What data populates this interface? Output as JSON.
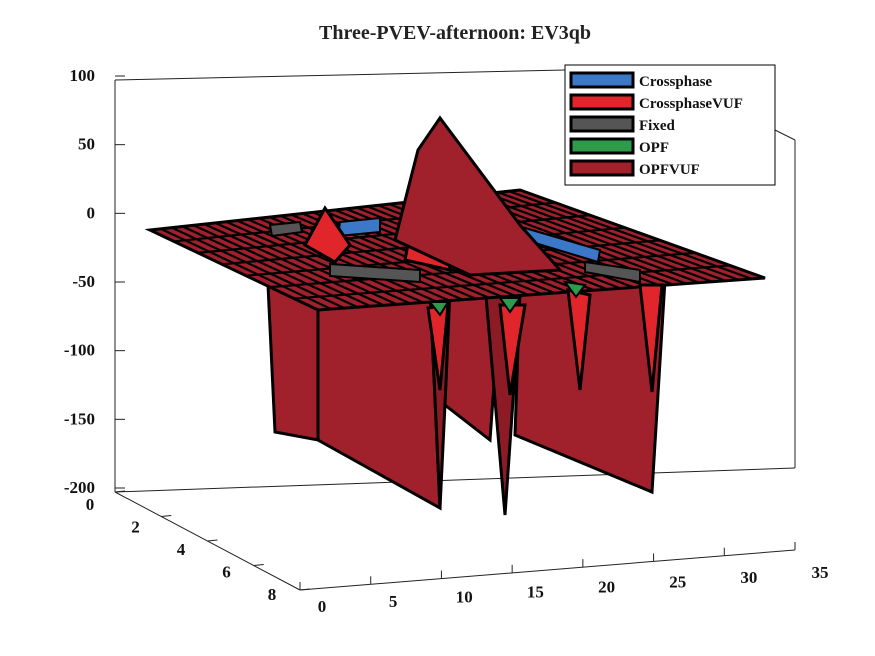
{
  "chart_data": {
    "type": "surface3d",
    "title": "Three-PVEV-afternoon: EV3qb",
    "xlabel": "",
    "ylabel": "",
    "zlabel": "",
    "x_ticks": [
      "0",
      "5",
      "10",
      "15",
      "20",
      "25",
      "30",
      "35"
    ],
    "y_ticks": [
      "0",
      "2",
      "4",
      "6",
      "8"
    ],
    "z_ticks": [
      "100",
      "50",
      "0",
      "-50",
      "-100",
      "-150",
      "-200"
    ],
    "xlim": [
      0,
      35
    ],
    "ylim": [
      0,
      8
    ],
    "zlim": [
      -200,
      100
    ],
    "grid": false,
    "legend_position": "top-right",
    "series": [
      {
        "name": "Crossphase",
        "color": "#3b78c8",
        "surface_note": "near-flat surface at ~0 with small blue highlights along the row y≈2"
      },
      {
        "name": "CrossphaseVUF",
        "color": "#e0262b",
        "peaks": [
          {
            "x": 10,
            "y": 6,
            "z": 5
          },
          {
            "x": 13,
            "y": 6,
            "z": 25
          }
        ],
        "troughs": [
          {
            "x": 6,
            "y": 6,
            "z": -130
          },
          {
            "x": 12,
            "y": 6,
            "z": -120
          },
          {
            "x": 19,
            "y": 6,
            "z": -125
          },
          {
            "x": 25,
            "y": 6,
            "z": -125
          }
        ]
      },
      {
        "name": "Fixed",
        "color": "#555555",
        "surface_note": "flat surface at ~0"
      },
      {
        "name": "OPF",
        "color": "#2e9b4a",
        "troughs": [
          {
            "x": 6,
            "y": 7,
            "z": -50
          },
          {
            "x": 12,
            "y": 7,
            "z": -50
          },
          {
            "x": 19,
            "y": 7,
            "z": -45
          }
        ]
      },
      {
        "name": "OPFVUF",
        "color": "#a0202b",
        "base_level": 0,
        "peaks": [
          {
            "x": 14,
            "y": 5,
            "z": 68
          }
        ],
        "wall_row": 8,
        "wall_values_by_x": [
          {
            "x": 0,
            "z": -150
          },
          {
            "x": 7,
            "z": -150
          },
          {
            "x": 8,
            "z": -180
          },
          {
            "x": 12,
            "z": -195
          },
          {
            "x": 13,
            "z": -140
          },
          {
            "x": 16,
            "z": -190
          },
          {
            "x": 17,
            "z": -150
          },
          {
            "x": 33,
            "z": -195
          }
        ]
      }
    ]
  }
}
